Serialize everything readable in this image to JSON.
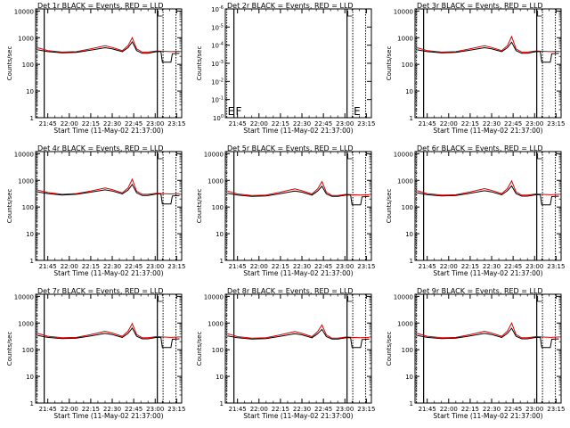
{
  "chart_data": {
    "type": "line",
    "xlabel": "Start Time (11-May-02 21:37:00)",
    "ylabel": "Counts/sec",
    "x_ticks": [
      "21:45",
      "22:00",
      "22:15",
      "22:30",
      "22:45",
      "23:00",
      "23:15"
    ],
    "x_tick_minutes": [
      0,
      15,
      30,
      45,
      60,
      75,
      90
    ],
    "xlim_minutes": [
      -8.5,
      93.5
    ],
    "y_scale": "log",
    "x_unit_note": "minutes after 21:45",
    "series_colors": {
      "events": "#000000",
      "lld": "#dd0000"
    },
    "dashed_markers_minutes": [
      -7.5,
      80.5,
      89.5
    ],
    "solid_markers_minutes": [
      -2.5,
      76.5
    ],
    "plots": [
      {
        "title": "Det 1r BLACK = Events, RED = LLD",
        "y_ticks": [
          "1",
          "10",
          "100",
          "1000",
          "10000"
        ],
        "ylim": [
          1,
          12000
        ],
        "events": {
          "x": [
            -7,
            0,
            10,
            20,
            30,
            40,
            45,
            52,
            56,
            59,
            62,
            66,
            70,
            76,
            79,
            80,
            86,
            87,
            92
          ],
          "y": [
            350,
            300,
            270,
            280,
            340,
            420,
            380,
            300,
            420,
            700,
            330,
            260,
            260,
            300,
            300,
            120,
            120,
            250,
            260
          ]
        },
        "lld": {
          "x": [
            -7,
            0,
            10,
            20,
            30,
            40,
            45,
            52,
            56,
            59,
            62,
            66,
            70,
            76,
            80,
            86,
            92
          ],
          "y": [
            420,
            330,
            290,
            300,
            380,
            500,
            430,
            330,
            500,
            1000,
            380,
            290,
            290,
            320,
            310,
            300,
            310
          ]
        },
        "footer_letters": []
      },
      {
        "title": "Det 2r BLACK = Events, RED = LLD",
        "y_ticks": [
          "10^0",
          "10^-1",
          "10^-2",
          "10^-3",
          "10^-4",
          "10^-5",
          "10^-6"
        ],
        "y_tick_fracs": [
          0.0,
          0.1667,
          0.3333,
          0.5,
          0.6667,
          0.8333,
          1.0
        ],
        "ylim_note": "empty panel, no data",
        "events": {
          "x": [],
          "y": []
        },
        "lld": {
          "x": [],
          "y": []
        },
        "footer_letters": [
          "E",
          "F",
          "E"
        ]
      },
      {
        "title": "Det 3r BLACK = Events, RED = LLD",
        "y_ticks": [
          "1",
          "10",
          "100",
          "1000",
          "10000"
        ],
        "ylim": [
          1,
          12000
        ],
        "events": {
          "x": [
            -7,
            0,
            10,
            20,
            30,
            40,
            45,
            52,
            56,
            59,
            62,
            66,
            70,
            76,
            79,
            80,
            86,
            87,
            92
          ],
          "y": [
            350,
            300,
            270,
            280,
            340,
            420,
            380,
            300,
            420,
            680,
            330,
            260,
            260,
            300,
            300,
            120,
            120,
            250,
            260
          ]
        },
        "lld": {
          "x": [
            -7,
            0,
            10,
            20,
            30,
            40,
            45,
            52,
            56,
            59,
            62,
            66,
            70,
            76,
            80,
            86,
            92
          ],
          "y": [
            420,
            330,
            290,
            300,
            380,
            500,
            430,
            330,
            500,
            1100,
            380,
            290,
            290,
            320,
            310,
            300,
            310
          ]
        },
        "footer_letters": []
      },
      {
        "title": "Det 4r BLACK = Events, RED = LLD",
        "y_ticks": [
          "1",
          "10",
          "100",
          "1000",
          "10000"
        ],
        "ylim": [
          1,
          12000
        ],
        "events": {
          "x": [
            -7,
            0,
            10,
            20,
            30,
            40,
            45,
            52,
            56,
            59,
            62,
            66,
            70,
            76,
            79,
            80,
            86,
            87,
            92
          ],
          "y": [
            370,
            320,
            280,
            300,
            360,
            440,
            400,
            310,
            430,
            700,
            340,
            270,
            270,
            310,
            310,
            130,
            130,
            260,
            270
          ]
        },
        "lld": {
          "x": [
            -7,
            0,
            10,
            20,
            30,
            40,
            45,
            52,
            56,
            59,
            62,
            66,
            70,
            76,
            80,
            86,
            92
          ],
          "y": [
            430,
            350,
            300,
            320,
            400,
            520,
            450,
            340,
            520,
            1100,
            390,
            300,
            300,
            330,
            320,
            310,
            320
          ]
        },
        "footer_letters": []
      },
      {
        "title": "Det 5r BLACK = Events, RED = LLD",
        "y_ticks": [
          "1",
          "10",
          "100",
          "1000",
          "10000"
        ],
        "ylim": [
          1,
          12000
        ],
        "events": {
          "x": [
            -7,
            0,
            10,
            20,
            30,
            40,
            45,
            52,
            56,
            59,
            62,
            66,
            70,
            76,
            79,
            80,
            86,
            87,
            92
          ],
          "y": [
            330,
            280,
            250,
            260,
            320,
            400,
            360,
            280,
            400,
            600,
            310,
            250,
            250,
            280,
            280,
            120,
            120,
            240,
            250
          ]
        },
        "lld": {
          "x": [
            -7,
            0,
            10,
            20,
            30,
            40,
            45,
            52,
            56,
            59,
            62,
            66,
            70,
            76,
            80,
            86,
            92
          ],
          "y": [
            400,
            310,
            270,
            280,
            360,
            480,
            410,
            310,
            480,
            900,
            360,
            270,
            270,
            300,
            290,
            280,
            290
          ]
        },
        "footer_letters": []
      },
      {
        "title": "Det 6r BLACK = Events, RED = LLD",
        "y_ticks": [
          "1",
          "10",
          "100",
          "1000",
          "10000"
        ],
        "ylim": [
          1,
          12000
        ],
        "events": {
          "x": [
            -7,
            0,
            10,
            20,
            30,
            40,
            45,
            52,
            56,
            59,
            62,
            66,
            70,
            76,
            79,
            80,
            86,
            87,
            92
          ],
          "y": [
            340,
            290,
            260,
            270,
            330,
            410,
            370,
            290,
            410,
            620,
            320,
            255,
            255,
            290,
            290,
            120,
            120,
            245,
            255
          ]
        },
        "lld": {
          "x": [
            -7,
            0,
            10,
            20,
            30,
            40,
            45,
            52,
            56,
            59,
            62,
            66,
            70,
            76,
            80,
            86,
            92
          ],
          "y": [
            410,
            320,
            280,
            290,
            370,
            490,
            420,
            320,
            490,
            950,
            370,
            280,
            280,
            310,
            300,
            290,
            300
          ]
        },
        "footer_letters": []
      },
      {
        "title": "Det 7r BLACK = Events, RED = LLD",
        "y_ticks": [
          "1",
          "10",
          "100",
          "1000",
          "10000"
        ],
        "ylim": [
          1,
          12000
        ],
        "events": {
          "x": [
            -7,
            0,
            10,
            20,
            30,
            40,
            45,
            52,
            56,
            59,
            62,
            66,
            70,
            76,
            79,
            80,
            86,
            87,
            92
          ],
          "y": [
            340,
            290,
            260,
            270,
            330,
            410,
            370,
            290,
            410,
            650,
            320,
            255,
            255,
            290,
            290,
            120,
            120,
            245,
            255
          ]
        },
        "lld": {
          "x": [
            -7,
            0,
            10,
            20,
            30,
            40,
            45,
            52,
            56,
            59,
            62,
            66,
            70,
            76,
            80,
            86,
            92
          ],
          "y": [
            410,
            320,
            280,
            290,
            370,
            490,
            420,
            320,
            490,
            950,
            370,
            280,
            280,
            310,
            300,
            290,
            300
          ]
        },
        "footer_letters": []
      },
      {
        "title": "Det 8r BLACK = Events, RED = LLD",
        "y_ticks": [
          "1",
          "10",
          "100",
          "1000",
          "10000"
        ],
        "ylim": [
          1,
          12000
        ],
        "events": {
          "x": [
            -7,
            0,
            10,
            20,
            30,
            40,
            45,
            52,
            56,
            59,
            62,
            66,
            70,
            76,
            79,
            80,
            86,
            87,
            92
          ],
          "y": [
            330,
            280,
            250,
            260,
            320,
            400,
            360,
            280,
            400,
            580,
            310,
            250,
            250,
            280,
            280,
            120,
            120,
            240,
            250
          ]
        },
        "lld": {
          "x": [
            -7,
            0,
            10,
            20,
            30,
            40,
            45,
            52,
            56,
            59,
            62,
            66,
            70,
            76,
            80,
            86,
            92
          ],
          "y": [
            400,
            310,
            270,
            280,
            360,
            480,
            410,
            310,
            480,
            850,
            360,
            270,
            270,
            300,
            290,
            280,
            290
          ]
        },
        "footer_letters": []
      },
      {
        "title": "Det 9r BLACK = Events, RED = LLD",
        "y_ticks": [
          "1",
          "10",
          "100",
          "1000",
          "10000"
        ],
        "ylim": [
          1,
          12000
        ],
        "events": {
          "x": [
            -7,
            0,
            10,
            20,
            30,
            40,
            45,
            52,
            56,
            59,
            62,
            66,
            70,
            76,
            79,
            80,
            86,
            87,
            92
          ],
          "y": [
            340,
            290,
            260,
            270,
            330,
            410,
            370,
            290,
            410,
            640,
            320,
            255,
            255,
            290,
            290,
            120,
            120,
            245,
            255
          ]
        },
        "lld": {
          "x": [
            -7,
            0,
            10,
            20,
            30,
            40,
            45,
            52,
            56,
            59,
            62,
            66,
            70,
            76,
            80,
            86,
            92
          ],
          "y": [
            410,
            320,
            280,
            290,
            370,
            490,
            420,
            320,
            490,
            1000,
            370,
            280,
            280,
            310,
            300,
            290,
            300
          ]
        },
        "footer_letters": []
      }
    ]
  }
}
